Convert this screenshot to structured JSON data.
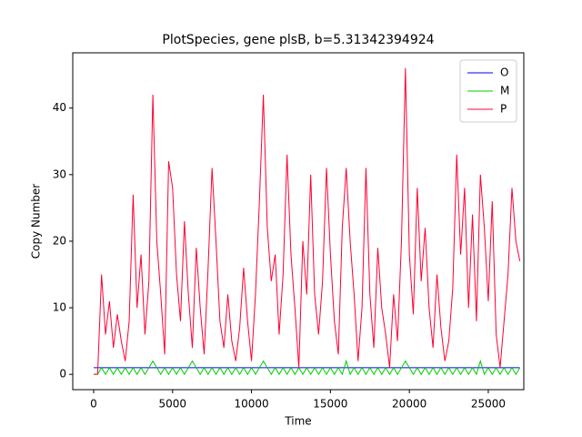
{
  "chart_data": {
    "type": "line",
    "title": "PlotSpecies, gene plsB, b=5.31342394924",
    "xlabel": "Time",
    "ylabel": "Copy Number",
    "x": [
      0,
      250,
      500,
      750,
      1000,
      1250,
      1500,
      1750,
      2000,
      2250,
      2500,
      2750,
      3000,
      3250,
      3500,
      3750,
      4000,
      4250,
      4500,
      4750,
      5000,
      5250,
      5500,
      5750,
      6000,
      6250,
      6500,
      6750,
      7000,
      7250,
      7500,
      7750,
      8000,
      8250,
      8500,
      8750,
      9000,
      9250,
      9500,
      9750,
      10000,
      10250,
      10500,
      10750,
      11000,
      11250,
      11500,
      11750,
      12000,
      12250,
      12500,
      12750,
      13000,
      13250,
      13500,
      13750,
      14000,
      14250,
      14500,
      14750,
      15000,
      15250,
      15500,
      15750,
      16000,
      16250,
      16500,
      16750,
      17000,
      17250,
      17500,
      17750,
      18000,
      18250,
      18500,
      18750,
      19000,
      19250,
      19500,
      19750,
      20000,
      20250,
      20500,
      20750,
      21000,
      21250,
      21500,
      21750,
      22000,
      22250,
      22500,
      22750,
      23000,
      23250,
      23500,
      23750,
      24000,
      24250,
      24500,
      24750,
      25000,
      25250,
      25500,
      25750,
      26000,
      26250,
      26500,
      26750,
      27000
    ],
    "series": [
      {
        "name": "O",
        "color": "#0000ff",
        "values": [
          1,
          1,
          1,
          1,
          1,
          1,
          1,
          1,
          1,
          1,
          1,
          1,
          1,
          1,
          1,
          1,
          1,
          1,
          1,
          1,
          1,
          1,
          1,
          1,
          1,
          1,
          1,
          1,
          1,
          1,
          1,
          1,
          1,
          1,
          1,
          1,
          1,
          1,
          1,
          1,
          1,
          1,
          1,
          1,
          1,
          1,
          1,
          1,
          1,
          1,
          1,
          1,
          1,
          1,
          1,
          1,
          1,
          1,
          1,
          1,
          1,
          1,
          1,
          1,
          1,
          1,
          1,
          1,
          1,
          1,
          1,
          1,
          1,
          1,
          1,
          1,
          1,
          1,
          1,
          1,
          1,
          1,
          1,
          1,
          1,
          1,
          1,
          1,
          1,
          1,
          1,
          1,
          1,
          1,
          1,
          1,
          1,
          1,
          1,
          1,
          1,
          1,
          1,
          1,
          1,
          1,
          1,
          1,
          1
        ]
      },
      {
        "name": "M",
        "color": "#00cc00",
        "values": [
          0,
          0,
          1,
          0,
          1,
          0,
          1,
          0,
          1,
          0,
          1,
          0,
          1,
          0,
          1,
          2,
          1,
          0,
          1,
          0,
          1,
          0,
          1,
          0,
          1,
          2,
          1,
          0,
          1,
          0,
          1,
          0,
          1,
          0,
          1,
          0,
          1,
          0,
          1,
          0,
          1,
          0,
          1,
          2,
          1,
          0,
          1,
          0,
          1,
          0,
          1,
          0,
          1,
          0,
          1,
          0,
          1,
          0,
          1,
          0,
          1,
          0,
          1,
          0,
          2,
          0,
          1,
          0,
          1,
          0,
          1,
          0,
          1,
          0,
          1,
          0,
          1,
          0,
          1,
          2,
          1,
          0,
          1,
          0,
          1,
          0,
          1,
          0,
          1,
          0,
          1,
          0,
          1,
          0,
          1,
          0,
          1,
          0,
          2,
          0,
          1,
          0,
          1,
          0,
          1,
          0,
          1,
          0,
          1
        ]
      },
      {
        "name": "P",
        "color": "#ff0033",
        "values": [
          0,
          0,
          15,
          6,
          11,
          4,
          9,
          5,
          2,
          8,
          27,
          10,
          18,
          6,
          14,
          42,
          20,
          12,
          3,
          32,
          28,
          15,
          8,
          23,
          12,
          4,
          19,
          10,
          3,
          16,
          31,
          20,
          8,
          4,
          12,
          5,
          2,
          7,
          16,
          8,
          2,
          12,
          26,
          42,
          22,
          14,
          18,
          6,
          15,
          33,
          18,
          10,
          1,
          20,
          12,
          30,
          12,
          6,
          14,
          31,
          18,
          8,
          3,
          22,
          31,
          20,
          12,
          2,
          10,
          31,
          12,
          4,
          19,
          10,
          6,
          1,
          12,
          5,
          20,
          46,
          18,
          9,
          28,
          14,
          22,
          10,
          4,
          15,
          7,
          2,
          5,
          13,
          33,
          18,
          28,
          10,
          24,
          8,
          30,
          22,
          11,
          26,
          6,
          1,
          8,
          15,
          28,
          20,
          17
        ]
      }
    ],
    "xlim": [
      -1325,
      27250
    ],
    "ylim": [
      -2.3,
      48.3
    ],
    "xticks": [
      0,
      5000,
      10000,
      15000,
      20000,
      25000
    ],
    "yticks": [
      0,
      10,
      20,
      30,
      40
    ],
    "legend": "upper right"
  }
}
